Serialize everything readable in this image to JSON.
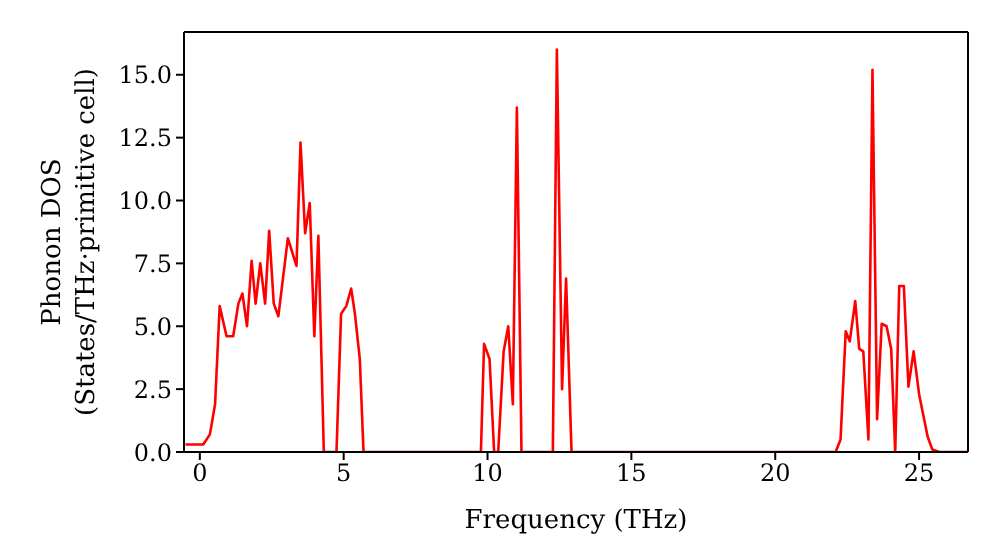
{
  "chart_data": {
    "type": "line",
    "xlabel": "Frequency (THz)",
    "ylabel": "Phonon DOS\n(States/THz·primitive cell)",
    "x": [
      -0.5,
      0.12,
      0.35,
      0.53,
      0.69,
      0.93,
      1.16,
      1.34,
      1.48,
      1.64,
      1.8,
      1.94,
      2.1,
      2.27,
      2.41,
      2.57,
      2.73,
      3.06,
      3.36,
      3.5,
      3.66,
      3.82,
      3.98,
      4.12,
      4.31,
      4.75,
      4.91,
      5.09,
      5.26,
      5.39,
      5.56,
      5.69,
      9.77,
      9.88,
      10.07,
      10.23,
      10.37,
      10.56,
      10.72,
      10.88,
      11.02,
      11.18,
      12.27,
      12.41,
      12.59,
      12.73,
      12.92,
      22.1,
      22.27,
      22.45,
      22.59,
      22.78,
      22.92,
      23.06,
      23.24,
      23.38,
      23.54,
      23.7,
      23.87,
      24.03,
      24.17,
      24.31,
      24.47,
      24.63,
      24.81,
      25.0,
      25.14,
      25.3,
      25.46,
      25.7,
      26.7
    ],
    "series": [
      {
        "color": "#ff0000",
        "values": [
          0.3,
          0.3,
          0.7,
          1.9,
          5.8,
          4.6,
          4.6,
          5.9,
          6.3,
          5.0,
          7.6,
          5.9,
          7.5,
          5.9,
          8.8,
          5.9,
          5.4,
          8.5,
          7.4,
          12.3,
          8.7,
          9.9,
          4.6,
          8.6,
          0,
          0,
          5.5,
          5.8,
          6.5,
          5.5,
          3.7,
          0,
          0,
          4.3,
          3.7,
          0,
          0,
          4.0,
          5.0,
          1.9,
          13.7,
          0,
          0,
          16.0,
          2.5,
          6.9,
          0,
          0,
          0.5,
          4.8,
          4.4,
          6.0,
          4.1,
          4.0,
          0.5,
          15.2,
          1.3,
          5.1,
          5.0,
          4.1,
          0,
          6.6,
          6.6,
          2.6,
          4.0,
          2.3,
          1.5,
          0.6,
          0.1,
          0,
          0
        ]
      }
    ],
    "xlim": [
      -0.55,
      26.7
    ],
    "ylim": [
      0,
      16.7
    ],
    "xticks": [
      0,
      5,
      10,
      15,
      20,
      25
    ],
    "yticks": [
      {
        "value": 0,
        "label": "0.0"
      },
      {
        "value": 2.5,
        "label": "2.5"
      },
      {
        "value": 5,
        "label": "5.0"
      },
      {
        "value": 7.5,
        "label": "7.5"
      },
      {
        "value": 10,
        "label": "10.0"
      },
      {
        "value": 12.5,
        "label": "12.5"
      },
      {
        "value": 15,
        "label": "15.0"
      }
    ],
    "grid": false,
    "marker": "none",
    "line_style": "solid"
  }
}
